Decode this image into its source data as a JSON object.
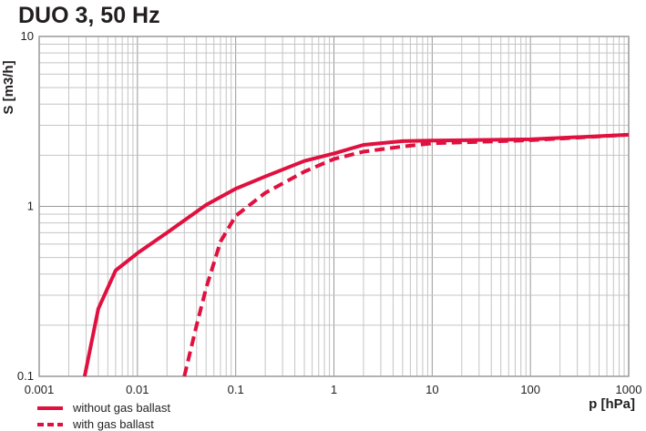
{
  "chart_data": {
    "type": "line",
    "title": "DUO 3, 50 Hz",
    "xlabel": "p [hPa]",
    "ylabel": "S [m3/h]",
    "xscale": "log",
    "yscale": "log",
    "xlim": [
      0.001,
      1000
    ],
    "ylim": [
      0.1,
      10
    ],
    "xticks": [
      "0.001",
      "0.01",
      "0.1",
      "1",
      "10",
      "100",
      "1000"
    ],
    "yticks": [
      "0.1",
      "1",
      "10"
    ],
    "grid": true,
    "legend_position": "bottom-left",
    "color": "#e0103f",
    "series": [
      {
        "name": "without gas ballast",
        "style": "solid",
        "x": [
          0.0029,
          0.004,
          0.006,
          0.01,
          0.02,
          0.05,
          0.1,
          0.2,
          0.5,
          1,
          2,
          5,
          10,
          100,
          1000
        ],
        "y": [
          0.1,
          0.25,
          0.42,
          0.53,
          0.7,
          1.02,
          1.27,
          1.5,
          1.85,
          2.05,
          2.3,
          2.42,
          2.44,
          2.48,
          2.64
        ]
      },
      {
        "name": "with gas ballast",
        "style": "dashed",
        "x": [
          0.03,
          0.04,
          0.05,
          0.07,
          0.1,
          0.2,
          0.5,
          1,
          2,
          5,
          10,
          100,
          1000
        ],
        "y": [
          0.1,
          0.2,
          0.33,
          0.62,
          0.88,
          1.2,
          1.6,
          1.9,
          2.1,
          2.25,
          2.35,
          2.45,
          2.64
        ]
      }
    ]
  }
}
